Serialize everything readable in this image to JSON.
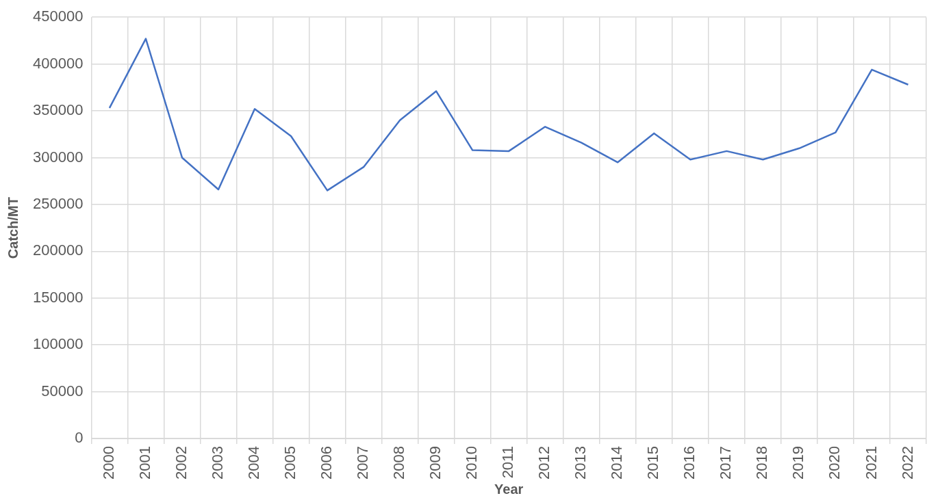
{
  "chart_data": {
    "type": "line",
    "xlabel": "Year",
    "ylabel": "Catch/MT",
    "categories": [
      "2000",
      "2001",
      "2002",
      "2003",
      "2004",
      "2005",
      "2006",
      "2007",
      "2008",
      "2009",
      "2010",
      "2011",
      "2012",
      "2013",
      "2014",
      "2015",
      "2016",
      "2017",
      "2018",
      "2019",
      "2020",
      "2021",
      "2022"
    ],
    "series": [
      {
        "color": "#4472c4",
        "values": [
          353000,
          427000,
          300000,
          266000,
          352000,
          323000,
          265000,
          290000,
          340000,
          371000,
          308000,
          307000,
          333000,
          316000,
          295000,
          326000,
          298000,
          307000,
          298000,
          310000,
          327000,
          394000,
          378000
        ]
      }
    ],
    "ylim": [
      0,
      450000
    ],
    "yticks": [
      0,
      50000,
      100000,
      150000,
      200000,
      250000,
      300000,
      350000,
      400000,
      450000
    ],
    "grid": true,
    "marker": "none"
  }
}
